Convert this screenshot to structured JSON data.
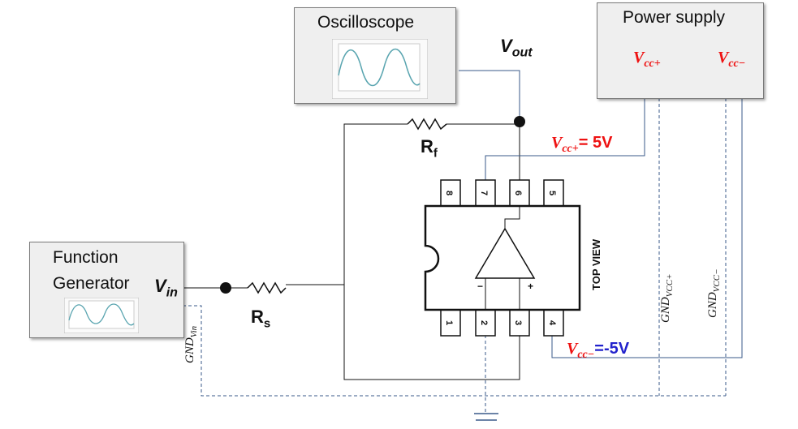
{
  "instruments": {
    "oscilloscope": {
      "title": "Oscilloscope"
    },
    "power_supply": {
      "title": "Power supply",
      "vcc_plus": "V",
      "vcc_plus_sub": "cc+",
      "vcc_minus": "V",
      "vcc_minus_sub": "cc−"
    },
    "function_generator": {
      "title_line1": "Function",
      "title_line2": "Generator"
    }
  },
  "signals": {
    "vout": {
      "main": "V",
      "sub": "out"
    },
    "vin": {
      "main": "V",
      "sub": "in"
    }
  },
  "components": {
    "rf": {
      "main": "R",
      "sub": "f"
    },
    "rs": {
      "main": "R",
      "sub": "s"
    }
  },
  "supply_labels": {
    "vcc_plus_value": {
      "main": "V",
      "sub": "cc+",
      "value": "= 5V"
    },
    "vcc_minus_value": {
      "main": "V",
      "sub": "cc−",
      "value": "=-5V"
    }
  },
  "ground_labels": {
    "gnd_vin": {
      "main": "GND",
      "sub": "Vin"
    },
    "gnd_vcc_plus": {
      "main": "GND",
      "sub": "VCC+"
    },
    "gnd_vcc_minus": {
      "main": "GND",
      "sub": "VCC−"
    }
  },
  "chip": {
    "top_view": "TOP VIEW",
    "pins_top": [
      "8",
      "7",
      "6",
      "5"
    ],
    "pins_bottom": [
      "1",
      "2",
      "3",
      "4"
    ],
    "minus": "−",
    "plus": "+"
  },
  "colors": {
    "red": "#ee1111",
    "blue": "#2222cc",
    "wire": "#3a5a8a",
    "wire_dark": "#111111"
  }
}
